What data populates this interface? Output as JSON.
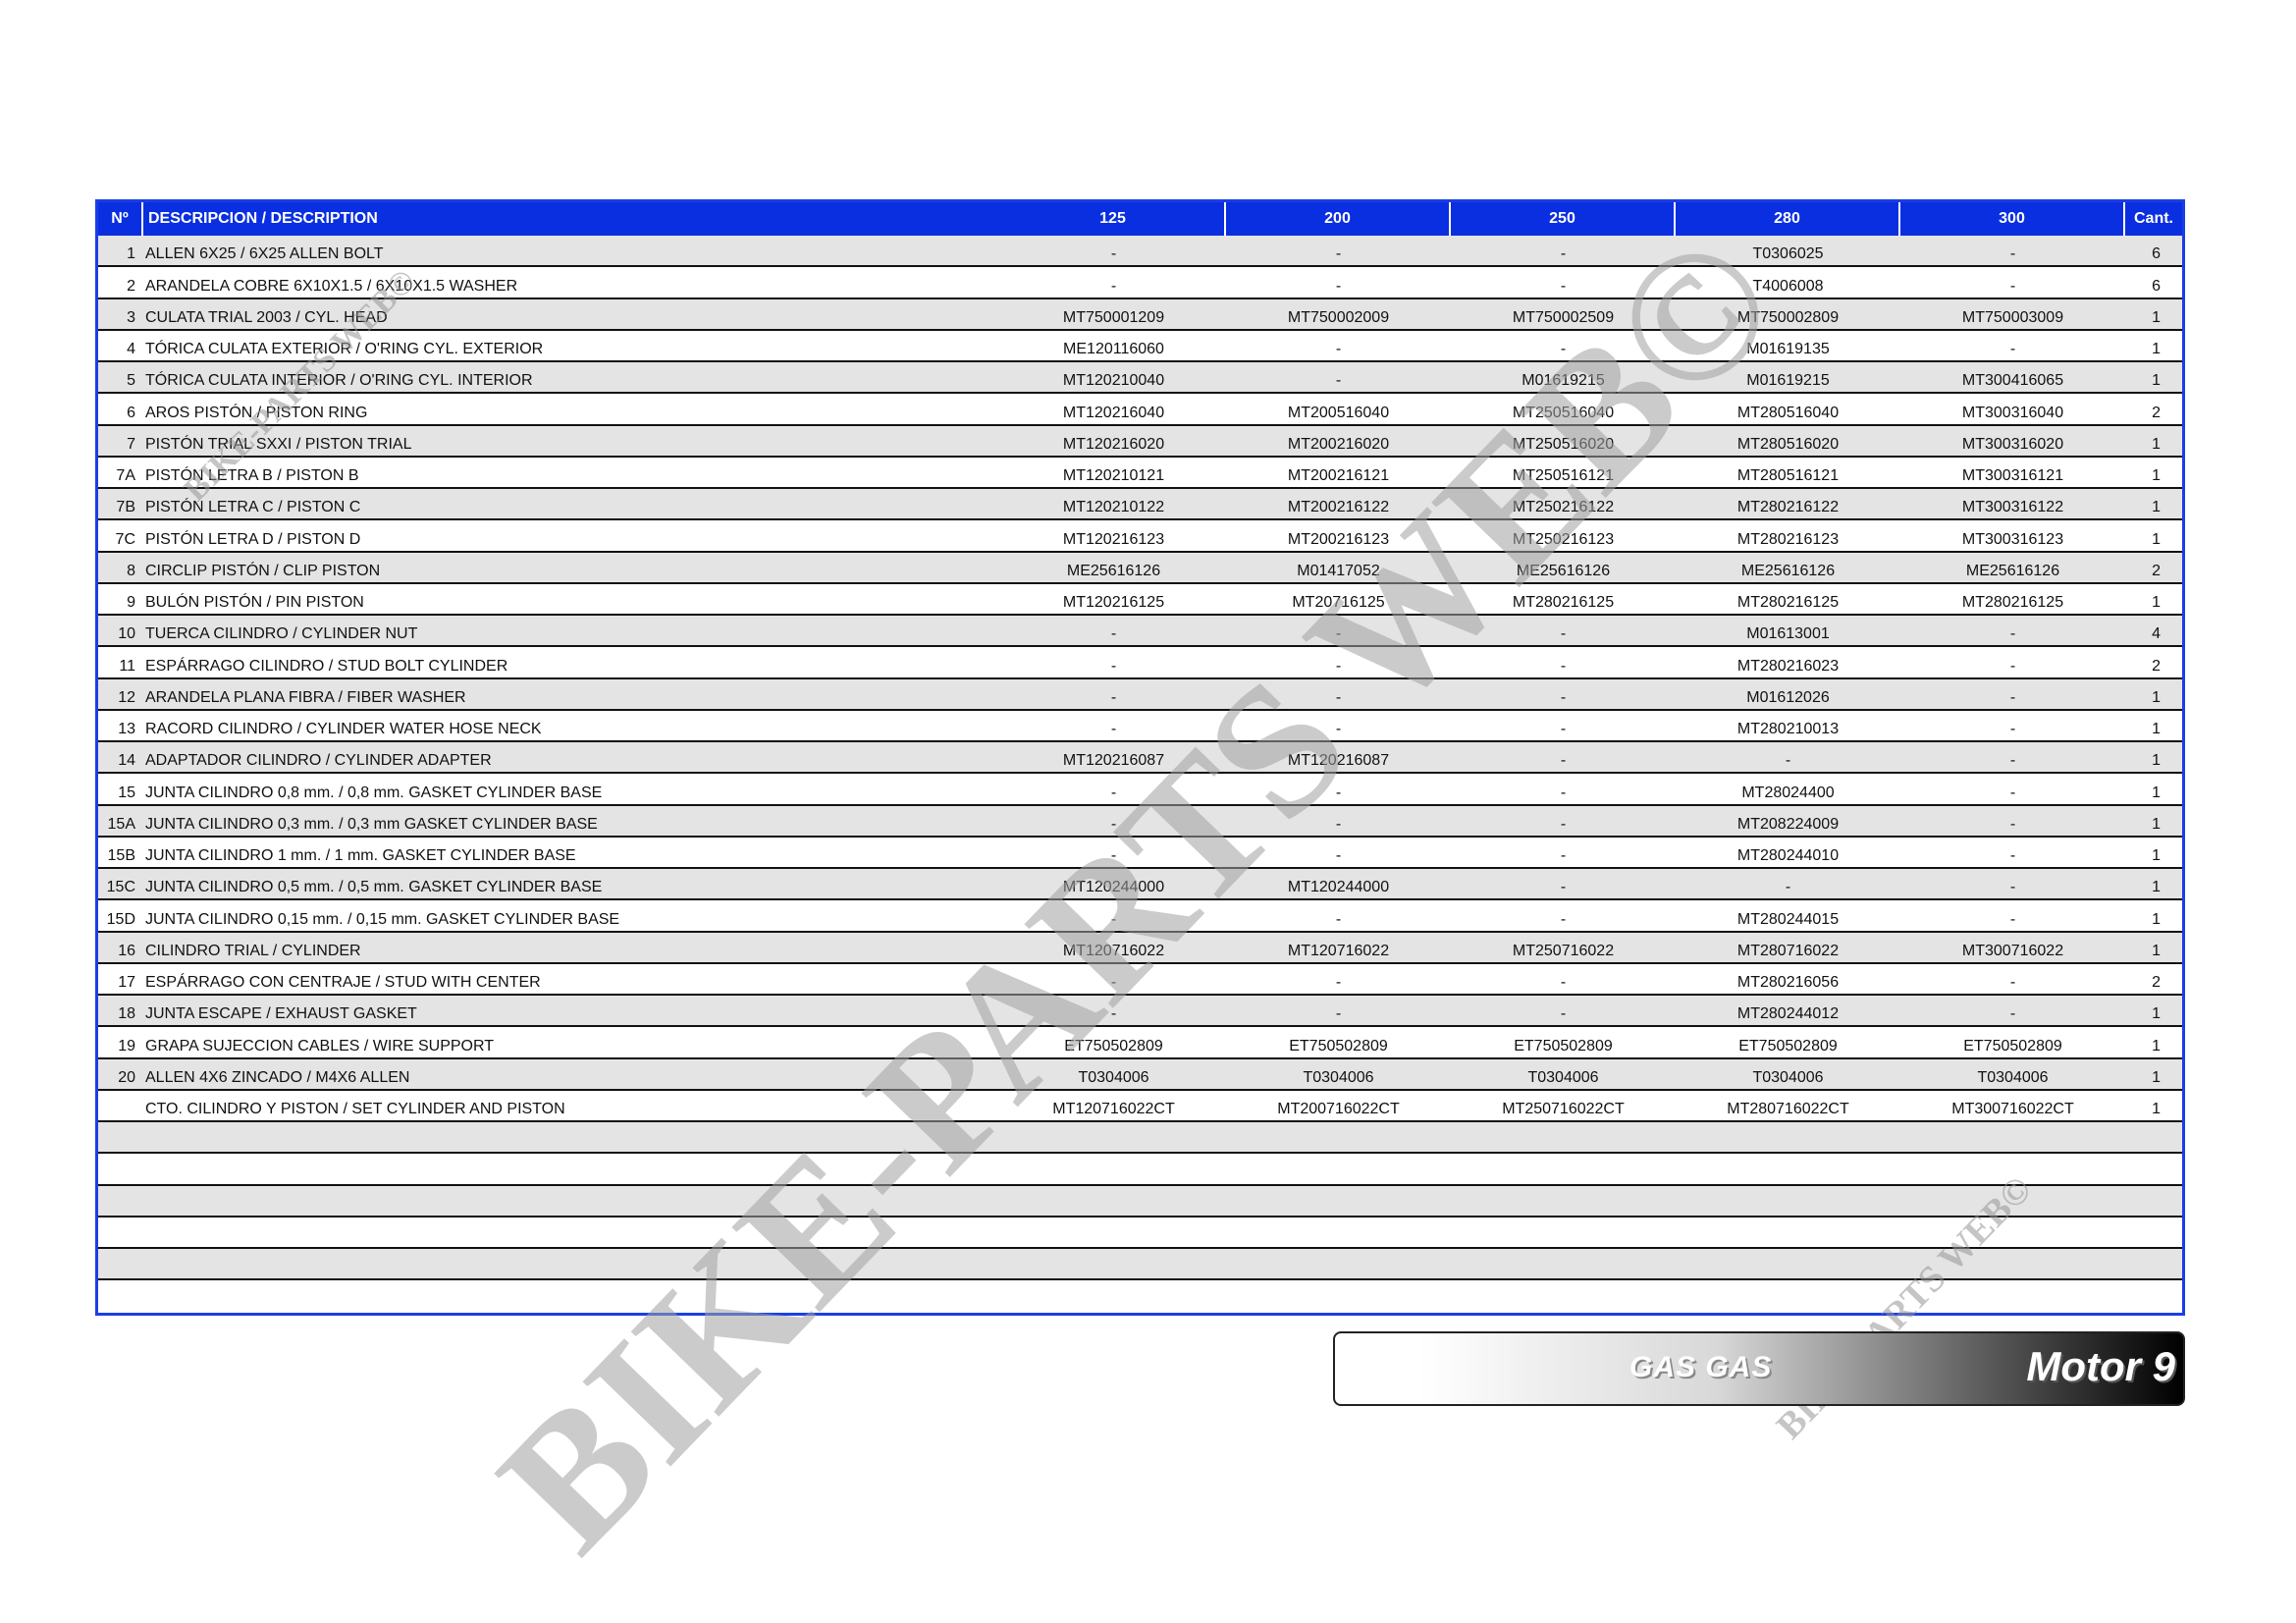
{
  "table": {
    "headers": {
      "no": "Nº",
      "description": "DESCRIPCION / DESCRIPTION",
      "models": [
        "125",
        "200",
        "250",
        "280",
        "300"
      ],
      "qty": "Cant."
    },
    "rows": [
      {
        "no": "1",
        "desc": "ALLEN 6X25 / 6X25 ALLEN BOLT",
        "parts": [
          "-",
          "-",
          "-",
          "T0306025",
          "-"
        ],
        "qty": "6"
      },
      {
        "no": "2",
        "desc": "ARANDELA COBRE 6X10X1.5 / 6X10X1.5 WASHER",
        "parts": [
          "-",
          "-",
          "-",
          "T4006008",
          "-"
        ],
        "qty": "6"
      },
      {
        "no": "3",
        "desc": "CULATA TRIAL 2003 / CYL. HEAD",
        "parts": [
          "MT750001209",
          "MT750002009",
          "MT750002509",
          "MT750002809",
          "MT750003009"
        ],
        "qty": "1"
      },
      {
        "no": "4",
        "desc": "TÓRICA CULATA EXTERIOR / O'RING CYL. EXTERIOR",
        "parts": [
          "ME120116060",
          "-",
          "-",
          "M01619135",
          "-"
        ],
        "qty": "1"
      },
      {
        "no": "5",
        "desc": "TÓRICA CULATA INTERIOR / O'RING CYL. INTERIOR",
        "parts": [
          "MT120210040",
          "-",
          "M01619215",
          "M01619215",
          "MT300416065"
        ],
        "qty": "1"
      },
      {
        "no": "6",
        "desc": "AROS PISTÓN / PISTON RING",
        "parts": [
          "MT120216040",
          "MT200516040",
          "MT250516040",
          "MT280516040",
          "MT300316040"
        ],
        "qty": "2"
      },
      {
        "no": "7",
        "desc": "PISTÓN TRIAL SXXI / PISTON TRIAL",
        "parts": [
          "MT120216020",
          "MT200216020",
          "MT250516020",
          "MT280516020",
          "MT300316020"
        ],
        "qty": "1"
      },
      {
        "no": "7A",
        "desc": "PISTÓN LETRA B / PISTON B",
        "parts": [
          "MT120210121",
          "MT200216121",
          "MT250516121",
          "MT280516121",
          "MT300316121"
        ],
        "qty": "1"
      },
      {
        "no": "7B",
        "desc": "PISTÓN LETRA C / PISTON C",
        "parts": [
          "MT120210122",
          "MT200216122",
          "MT250216122",
          "MT280216122",
          "MT300316122"
        ],
        "qty": "1"
      },
      {
        "no": "7C",
        "desc": "PISTÓN LETRA D / PISTON D",
        "parts": [
          "MT120216123",
          "MT200216123",
          "MT250216123",
          "MT280216123",
          "MT300316123"
        ],
        "qty": "1"
      },
      {
        "no": "8",
        "desc": "CIRCLIP PISTÓN / CLIP PISTON",
        "parts": [
          "ME25616126",
          "M01417052",
          "ME25616126",
          "ME25616126",
          "ME25616126"
        ],
        "qty": "2"
      },
      {
        "no": "9",
        "desc": "BULÓN PISTÓN / PIN PISTON",
        "parts": [
          "MT120216125",
          "MT20716125",
          "MT280216125",
          "MT280216125",
          "MT280216125"
        ],
        "qty": "1"
      },
      {
        "no": "10",
        "desc": "TUERCA CILINDRO / CYLINDER NUT",
        "parts": [
          "-",
          "-",
          "-",
          "M01613001",
          "-"
        ],
        "qty": "4"
      },
      {
        "no": "11",
        "desc": "ESPÁRRAGO CILINDRO / STUD BOLT CYLINDER",
        "parts": [
          "-",
          "-",
          "-",
          "MT280216023",
          "-"
        ],
        "qty": "2"
      },
      {
        "no": "12",
        "desc": "ARANDELA PLANA FIBRA / FIBER WASHER",
        "parts": [
          "-",
          "-",
          "-",
          "M01612026",
          "-"
        ],
        "qty": "1"
      },
      {
        "no": "13",
        "desc": "RACORD CILINDRO / CYLINDER WATER HOSE NECK",
        "parts": [
          "-",
          "-",
          "-",
          "MT280210013",
          "-"
        ],
        "qty": "1"
      },
      {
        "no": "14",
        "desc": "ADAPTADOR CILINDRO / CYLINDER ADAPTER",
        "parts": [
          "MT120216087",
          "MT120216087",
          "-",
          "-",
          "-"
        ],
        "qty": "1"
      },
      {
        "no": "15",
        "desc": "JUNTA CILINDRO 0,8 mm. / 0,8 mm. GASKET CYLINDER BASE",
        "parts": [
          "-",
          "-",
          "-",
          "MT28024400",
          "-"
        ],
        "qty": "1"
      },
      {
        "no": "15A",
        "desc": "JUNTA CILINDRO 0,3 mm. / 0,3 mm GASKET CYLINDER BASE",
        "parts": [
          "-",
          "-",
          "-",
          "MT208224009",
          "-"
        ],
        "qty": "1"
      },
      {
        "no": "15B",
        "desc": "JUNTA CILINDRO 1 mm. / 1 mm. GASKET CYLINDER BASE",
        "parts": [
          "-",
          "-",
          "-",
          "MT280244010",
          "-"
        ],
        "qty": "1"
      },
      {
        "no": "15C",
        "desc": "JUNTA CILINDRO 0,5 mm. / 0,5 mm. GASKET CYLINDER BASE",
        "parts": [
          "MT120244000",
          "MT120244000",
          "-",
          "-",
          "-"
        ],
        "qty": "1"
      },
      {
        "no": "15D",
        "desc": "JUNTA CILINDRO 0,15 mm. / 0,15 mm. GASKET CYLINDER BASE",
        "parts": [
          "-",
          "-",
          "-",
          "MT280244015",
          "-"
        ],
        "qty": "1"
      },
      {
        "no": "16",
        "desc": "CILINDRO TRIAL / CYLINDER",
        "parts": [
          "MT120716022",
          "MT120716022",
          "MT250716022",
          "MT280716022",
          "MT300716022"
        ],
        "qty": "1"
      },
      {
        "no": "17",
        "desc": "ESPÁRRAGO CON CENTRAJE / STUD WITH CENTER",
        "parts": [
          "-",
          "-",
          "-",
          "MT280216056",
          "-"
        ],
        "qty": "2"
      },
      {
        "no": "18",
        "desc": "JUNTA ESCAPE / EXHAUST GASKET",
        "parts": [
          "-",
          "-",
          "-",
          "MT280244012",
          "-"
        ],
        "qty": "1"
      },
      {
        "no": "19",
        "desc": "GRAPA SUJECCION CABLES / WIRE SUPPORT",
        "parts": [
          "ET750502809",
          "ET750502809",
          "ET750502809",
          "ET750502809",
          "ET750502809"
        ],
        "qty": "1"
      },
      {
        "no": "20",
        "desc": "ALLEN 4X6 ZINCADO / M4X6 ALLEN",
        "parts": [
          "T0304006",
          "T0304006",
          "T0304006",
          "T0304006",
          "T0304006"
        ],
        "qty": "1"
      },
      {
        "no": "",
        "desc": "CTO. CILINDRO Y PISTON / SET CYLINDER AND PISTON",
        "parts": [
          "MT120716022CT",
          "MT200716022CT",
          "MT250716022CT",
          "MT280716022CT",
          "MT300716022CT"
        ],
        "qty": "1"
      },
      {
        "no": "",
        "desc": "",
        "parts": [
          "",
          "",
          "",
          "",
          ""
        ],
        "qty": ""
      },
      {
        "no": "",
        "desc": "",
        "parts": [
          "",
          "",
          "",
          "",
          ""
        ],
        "qty": ""
      },
      {
        "no": "",
        "desc": "",
        "parts": [
          "",
          "",
          "",
          "",
          ""
        ],
        "qty": ""
      },
      {
        "no": "",
        "desc": "",
        "parts": [
          "",
          "",
          "",
          "",
          ""
        ],
        "qty": ""
      },
      {
        "no": "",
        "desc": "",
        "parts": [
          "",
          "",
          "",
          "",
          ""
        ],
        "qty": ""
      },
      {
        "no": "",
        "desc": "",
        "parts": [
          "",
          "",
          "",
          "",
          ""
        ],
        "qty": ""
      }
    ]
  },
  "footer": {
    "brand": "GAS GAS",
    "section": "Motor 9"
  },
  "watermark": {
    "text": "BIKE-PARTS WEB©"
  },
  "colors": {
    "header_bg": "#0a2fe0",
    "border": "#1a3ee6",
    "stripe": "#e4e4e4"
  }
}
